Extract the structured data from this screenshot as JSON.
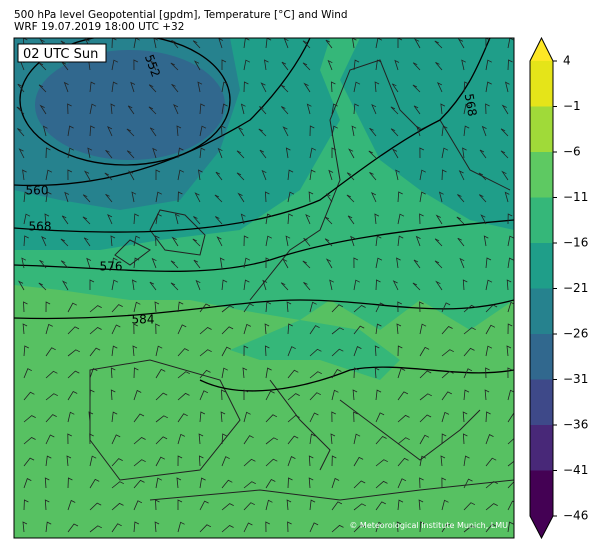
{
  "header": {
    "title": "500 hPa level Geopotential [gpdm], Temperature [°C] and Wind",
    "subtitle": "WRF 19.07.2019 18:00 UTC +32"
  },
  "map": {
    "time_label": "02 UTC Sun",
    "copyright": "© Meteorological Institute Munich, LMU",
    "contour_labels": [
      "552",
      "560",
      "568",
      "576",
      "584",
      "568"
    ]
  },
  "colorbar": {
    "range": [
      -46,
      4
    ],
    "ticks": [
      4,
      {
        "value": -1,
        "label": "−1"
      },
      {
        "value": -6,
        "label": "−6"
      },
      {
        "value": -11,
        "label": "−11"
      },
      {
        "value": -16,
        "label": "−16"
      },
      {
        "value": -21,
        "label": "−21"
      },
      {
        "value": -26,
        "label": "−26"
      },
      {
        "value": -31,
        "label": "−31"
      },
      {
        "value": -36,
        "label": "−36"
      },
      {
        "value": -41,
        "label": "−41"
      },
      {
        "value": -46,
        "label": "−46"
      }
    ],
    "colors": [
      "#e5e419",
      "#a0da39",
      "#5ec962",
      "#35b779",
      "#1f9e89",
      "#26828e",
      "#31688e",
      "#3e4989",
      "#482878",
      "#440154"
    ],
    "extend_colors": [
      "#fde725",
      "#440154"
    ]
  }
}
